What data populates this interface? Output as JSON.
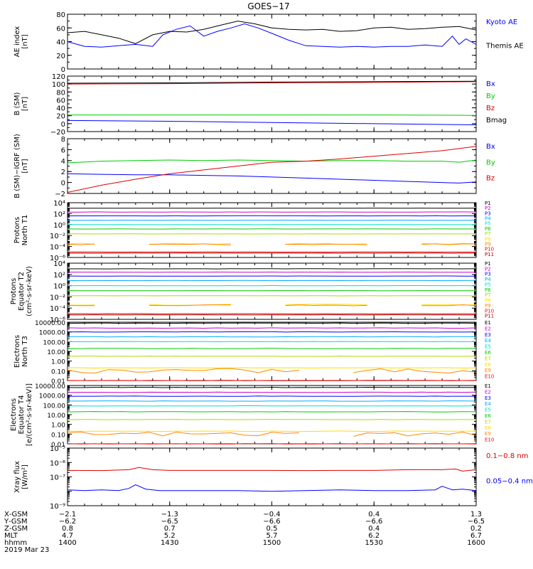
{
  "title": "GOES−17",
  "time_axis": {
    "tick_labels": [
      "1400",
      "1430",
      "1500",
      "1530",
      "1600"
    ],
    "ticks_hhmm": [
      1400,
      1430,
      1500,
      1530,
      1600
    ],
    "range_hhmm": [
      1400,
      1600
    ]
  },
  "ephemeris": {
    "rows": [
      {
        "label": "X‑GSM",
        "values": [
          "−2.1",
          "−1.3",
          "−0.4",
          "0.4",
          "1.3"
        ]
      },
      {
        "label": "Y‑GSM",
        "values": [
          "−6.2",
          "−6.5",
          "−6.6",
          "−6.6",
          "−6.5"
        ]
      },
      {
        "label": "Z‑GSM",
        "values": [
          "0.8",
          "0.7",
          "0.5",
          "0.4",
          "0.2"
        ]
      },
      {
        "label": "MLT",
        "values": [
          "4.7",
          "5.2",
          "5.7",
          "6.2",
          "6.7"
        ]
      },
      {
        "label": "hhmm",
        "values": [
          "1400",
          "1430",
          "1500",
          "1530",
          "1600"
        ]
      }
    ],
    "date": "2019 Mar 23"
  },
  "colors": {
    "black": "#000000",
    "blue": "#0000ff",
    "green": "#00dd00",
    "red": "#dd0000",
    "p_colors": [
      "#000000",
      "#cc00cc",
      "#0000ff",
      "#00aaff",
      "#00ddcc",
      "#00cc00",
      "#aadd00",
      "#ffdd00",
      "#ff8800",
      "#ff0000",
      "#aa0000"
    ]
  },
  "panels": [
    {
      "id": "ae",
      "ylabel": [
        "AE index",
        "[nT]"
      ],
      "scale": "linear",
      "ylim": [
        0,
        80
      ],
      "ticks": [
        0,
        20,
        40,
        60,
        80
      ],
      "tick_labels": [
        "0",
        "20",
        "40",
        "60",
        "80"
      ],
      "legend": [
        {
          "text": "Kyoto AE",
          "color": "#0000ff"
        },
        {
          "text": "Themis AE",
          "color": "#000000"
        }
      ],
      "chart_data": {
        "type": "line",
        "series": [
          {
            "name": "Kyoto AE",
            "color": "#0000ff",
            "x": [
              1400,
              1405,
              1410,
              1415,
              1420,
              1425,
              1428,
              1432,
              1436,
              1440,
              1444,
              1448,
              1452,
              1456,
              1500,
              1505,
              1510,
              1515,
              1520,
              1525,
              1530,
              1535,
              1540,
              1545,
              1550,
              1553,
              1555,
              1557,
              1600
            ],
            "y": [
              40,
              33,
              32,
              34,
              36,
              33,
              50,
              58,
              63,
              48,
              55,
              60,
              66,
              60,
              52,
              42,
              34,
              33,
              32,
              33,
              32,
              33,
              33,
              35,
              33,
              48,
              36,
              44,
              36
            ]
          },
          {
            "name": "Themis AE",
            "color": "#000000",
            "x": [
              1400,
              1405,
              1410,
              1415,
              1420,
              1425,
              1430,
              1435,
              1440,
              1445,
              1450,
              1455,
              1500,
              1505,
              1510,
              1515,
              1520,
              1525,
              1530,
              1535,
              1540,
              1545,
              1550,
              1555,
              1600
            ],
            "y": [
              53,
              55,
              50,
              45,
              37,
              50,
              55,
              54,
              58,
              64,
              70,
              66,
              60,
              58,
              57,
              58,
              55,
              56,
              60,
              61,
              58,
              59,
              61,
              62,
              57
            ]
          }
        ]
      }
    },
    {
      "id": "bsm",
      "ylabel": [
        "B (SM)",
        "[nT]"
      ],
      "scale": "linear",
      "ylim": [
        -20,
        120
      ],
      "ticks": [
        -20,
        0,
        20,
        40,
        60,
        80,
        100,
        120
      ],
      "tick_labels": [
        "−20",
        "0",
        "20",
        "40",
        "60",
        "80",
        "100",
        "120"
      ],
      "legend": [
        {
          "text": "Bx",
          "color": "#0000ff"
        },
        {
          "text": "By",
          "color": "#00cc00"
        },
        {
          "text": "Bz",
          "color": "#dd0000"
        },
        {
          "text": "Bmag",
          "color": "#000000"
        }
      ],
      "chart_data": {
        "type": "line",
        "series": [
          {
            "name": "Bx",
            "color": "#0000ff",
            "x": [
              1400,
              1430,
              1500,
              1530,
              1600
            ],
            "y": [
              8,
              6,
              3,
              0,
              -3
            ]
          },
          {
            "name": "By",
            "color": "#00cc00",
            "x": [
              1400,
              1430,
              1500,
              1530,
              1600
            ],
            "y": [
              22,
              22,
              22,
              22,
              21
            ]
          },
          {
            "name": "Bz",
            "color": "#dd0000",
            "x": [
              1400,
              1430,
              1500,
              1530,
              1600
            ],
            "y": [
              100,
              101,
              103,
              104,
              106
            ]
          },
          {
            "name": "Bmag",
            "color": "#000000",
            "x": [
              1400,
              1430,
              1500,
              1530,
              1600
            ],
            "y": [
              102,
              103,
              105,
              106,
              107
            ]
          }
        ]
      }
    },
    {
      "id": "bigrf",
      "ylabel": [
        "B (SM)−IGRF (SM)",
        "[nT]"
      ],
      "scale": "linear",
      "ylim": [
        -2,
        8
      ],
      "ticks": [
        -2,
        0,
        2,
        4,
        6,
        8
      ],
      "tick_labels": [
        "−2",
        "0",
        "2",
        "4",
        "6",
        "8"
      ],
      "legend": [
        {
          "text": "Bx",
          "color": "#0000ff"
        },
        {
          "text": "By",
          "color": "#00cc00"
        },
        {
          "text": "Bz",
          "color": "#dd0000"
        }
      ],
      "chart_data": {
        "type": "line",
        "series": [
          {
            "name": "Bx",
            "color": "#0000ff",
            "x": [
              1400,
              1410,
              1420,
              1430,
              1440,
              1450,
              1500,
              1510,
              1520,
              1530,
              1540,
              1550,
              1555,
              1600
            ],
            "y": [
              1.6,
              1.5,
              1.4,
              1.4,
              1.3,
              1.2,
              1.0,
              0.8,
              0.6,
              0.4,
              0.2,
              0.0,
              -0.1,
              0.1
            ]
          },
          {
            "name": "By",
            "color": "#00cc00",
            "x": [
              1400,
              1410,
              1420,
              1430,
              1440,
              1450,
              1500,
              1510,
              1520,
              1530,
              1540,
              1550,
              1555,
              1600
            ],
            "y": [
              3.6,
              3.9,
              4.0,
              4.1,
              4.0,
              4.1,
              4.0,
              3.9,
              4.0,
              4.0,
              3.9,
              3.9,
              3.7,
              4.1
            ]
          },
          {
            "name": "Bz",
            "color": "#dd0000",
            "x": [
              1400,
              1410,
              1420,
              1430,
              1440,
              1450,
              1500,
              1510,
              1520,
              1530,
              1540,
              1550,
              1600
            ],
            "y": [
              -1.8,
              -0.5,
              0.6,
              1.6,
              2.3,
              3.0,
              3.7,
              3.9,
              4.3,
              4.8,
              5.3,
              5.8,
              6.6
            ]
          }
        ]
      }
    },
    {
      "id": "pnorth",
      "ylabel": [
        "Protons",
        "North T1"
      ],
      "scale": "log",
      "ylim": [
        -6,
        4
      ],
      "ticks": [
        -6,
        -4,
        -2,
        0,
        2,
        4
      ],
      "tick_labels": [
        "10⁻⁶",
        "10⁻⁴",
        "10⁻²",
        "10⁰",
        "10²",
        "10⁴"
      ],
      "channels": [
        "P1",
        "P2",
        "P3",
        "P4",
        "P5",
        "P6",
        "P7",
        "P8",
        "P9",
        "P10",
        "P11"
      ],
      "chart_data": {
        "type": "line",
        "log10_levels": [
          3.0,
          2.3,
          1.6,
          0.8,
          0.0,
          -0.8,
          -1.7,
          -3.5,
          -3.6,
          -5.0,
          -5.2
        ]
      }
    },
    {
      "id": "pequator",
      "ylabel": [
        "Protons",
        "Equator T2",
        "(cm²‑s‑sr‑keV)"
      ],
      "scale": "log",
      "ylim": [
        -6,
        4
      ],
      "ticks": [
        -6,
        -4,
        -2,
        0,
        2,
        4
      ],
      "tick_labels": [
        "10⁻⁶",
        "10⁻⁴",
        "10⁻²",
        "10⁰",
        "10²",
        "10⁴"
      ],
      "channels": [
        "P1",
        "P2",
        "P3",
        "P4",
        "P5",
        "P6",
        "P7",
        "P8",
        "P9",
        "P10",
        "P11"
      ],
      "chart_data": {
        "type": "line",
        "log10_levels": [
          3.0,
          2.4,
          1.7,
          0.9,
          0.0,
          -0.9,
          -1.8,
          -3.4,
          -3.5,
          -5.0,
          -5.2
        ]
      }
    },
    {
      "id": "enorth",
      "ylabel": [
        "Electrons",
        "North T3"
      ],
      "scale": "log",
      "ylim": [
        -2,
        4
      ],
      "ticks": [
        -2,
        -1,
        0,
        1,
        2,
        3,
        4
      ],
      "tick_labels": [
        "0.01",
        "0.10",
        "1.00",
        "10.00",
        "100.00",
        "1000.00",
        "10000.00"
      ],
      "channels": [
        "E1",
        "E2",
        "E3",
        "E4",
        "E5",
        "E6",
        "E7",
        "E8",
        "E9",
        "E10"
      ],
      "chart_data": {
        "type": "line",
        "log10_levels": [
          3.9,
          3.4,
          3.0,
          2.5,
          2.0,
          1.3,
          0.5,
          -0.7,
          -1.0,
          -2.0
        ]
      }
    },
    {
      "id": "eequator",
      "ylabel": [
        "Electrons",
        "Equator T4",
        "[e/(cm²‑s‑sr‑keV)]"
      ],
      "scale": "log",
      "ylim": [
        -2,
        4
      ],
      "ticks": [
        -2,
        -1,
        0,
        1,
        2,
        3,
        4
      ],
      "tick_labels": [
        "0.01",
        "0.10",
        "1.00",
        "10.00",
        "100.00",
        "1000.00",
        "10000.00"
      ],
      "channels": [
        "E1",
        "E2",
        "E3",
        "E4",
        "E5",
        "E6",
        "E7",
        "E8",
        "E9",
        "E10"
      ],
      "chart_data": {
        "type": "line",
        "log10_levels": [
          3.8,
          3.3,
          2.9,
          2.4,
          1.9,
          1.3,
          0.5,
          -0.7,
          -1.0,
          -2.0
        ]
      }
    },
    {
      "id": "xray",
      "ylabel": [
        "Xray flux",
        "[W/m²]"
      ],
      "scale": "log",
      "ylim": [
        -9,
        -5
      ],
      "ticks": [
        -9,
        -8,
        -7,
        -6,
        -5
      ],
      "tick_labels": [
        "10⁻⁹",
        "",
        "10⁻⁷",
        "10⁻⁶",
        "10⁻⁵"
      ],
      "legend": [
        {
          "text": "0.1−0.8 nm",
          "color": "#dd0000"
        },
        {
          "text": "0.05−0.4 nm",
          "color": "#0000ff"
        }
      ],
      "chart_data": {
        "type": "line",
        "series": [
          {
            "name": "0.1−0.8 nm",
            "color": "#dd0000",
            "x": [
              1400,
              1410,
              1418,
              1421,
              1425,
              1430,
              1440,
              1450,
              1500,
              1510,
              1520,
              1530,
              1540,
              1550,
              1554,
              1556,
              1600
            ],
            "y": [
              -6.55,
              -6.56,
              -6.5,
              -6.35,
              -6.5,
              -6.55,
              -6.55,
              -6.55,
              -6.55,
              -6.56,
              -6.55,
              -6.55,
              -6.5,
              -6.5,
              -6.45,
              -6.6,
              -6.5
            ]
          },
          {
            "name": "0.05−0.4 nm",
            "color": "#0000ff",
            "x": [
              1400,
              1405,
              1410,
              1415,
              1418,
              1420,
              1423,
              1427,
              1430,
              1440,
              1450,
              1500,
              1510,
              1520,
              1530,
              1540,
              1548,
              1550,
              1553,
              1556,
              1600
            ],
            "y": [
              -7.9,
              -7.95,
              -7.9,
              -7.95,
              -7.8,
              -7.55,
              -7.85,
              -7.95,
              -7.95,
              -7.95,
              -7.95,
              -8.0,
              -7.95,
              -7.9,
              -7.95,
              -7.95,
              -7.9,
              -7.65,
              -7.9,
              -7.85,
              -7.95
            ]
          }
        ]
      }
    }
  ]
}
